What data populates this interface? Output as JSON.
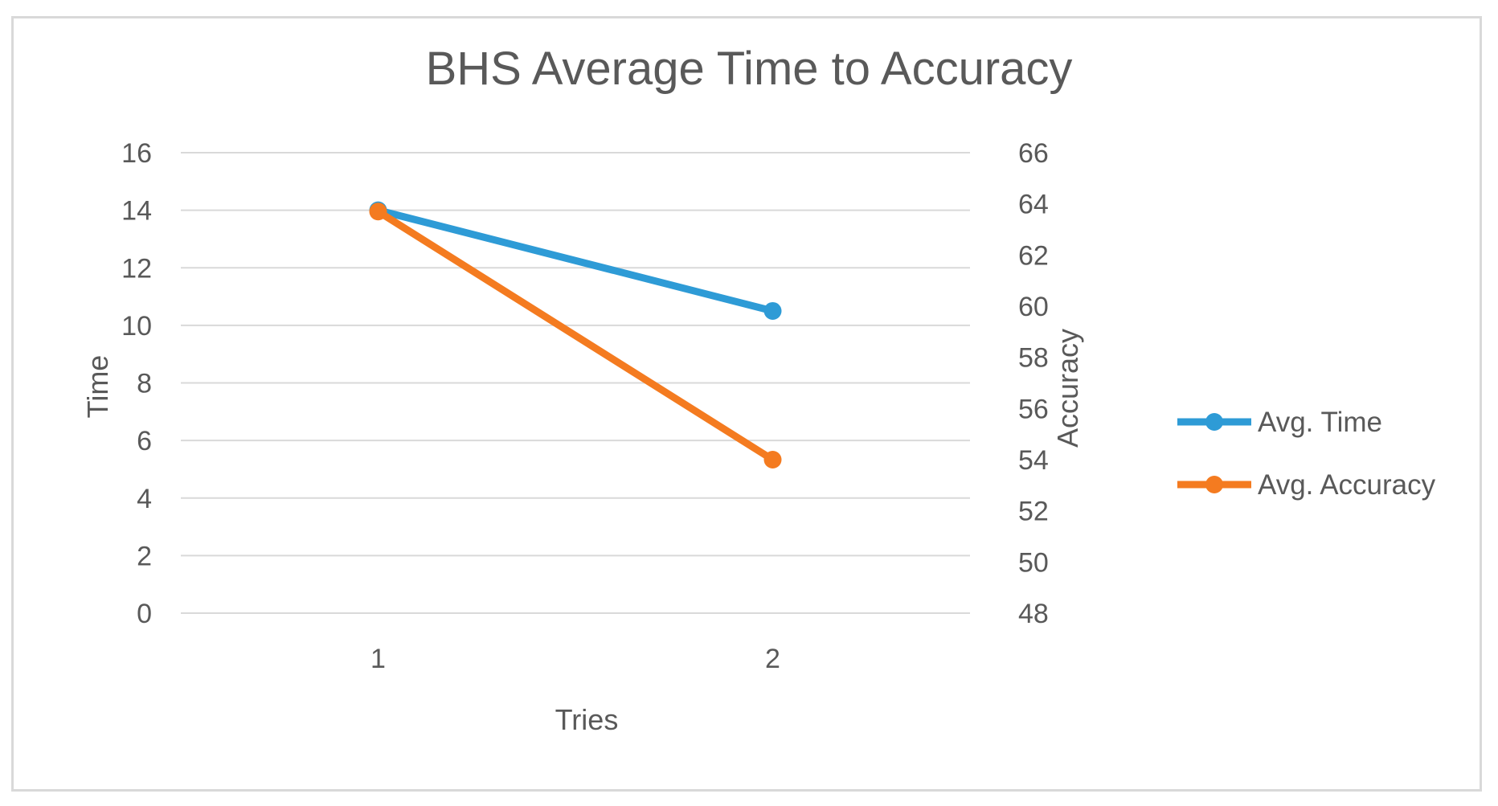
{
  "chart_data": {
    "type": "line",
    "title": "BHS Average Time to Accuracy",
    "xlabel": "Tries",
    "ylabel": "Time",
    "y2label": "Accuracy",
    "categories": [
      "1",
      "2"
    ],
    "ylim": [
      0,
      16
    ],
    "yticks": [
      0,
      2,
      4,
      6,
      8,
      10,
      12,
      14,
      16
    ],
    "y2lim": [
      48,
      66
    ],
    "y2ticks": [
      48,
      50,
      52,
      54,
      56,
      58,
      60,
      62,
      64,
      66
    ],
    "grid": true,
    "legend_position": "right",
    "series": [
      {
        "name": "Avg. Time",
        "axis": "left",
        "color": "#2e9bd6",
        "values": [
          14,
          10.5
        ]
      },
      {
        "name": "Avg. Accuracy",
        "axis": "right",
        "color": "#f47b20",
        "values": [
          63.7,
          54
        ]
      }
    ]
  }
}
